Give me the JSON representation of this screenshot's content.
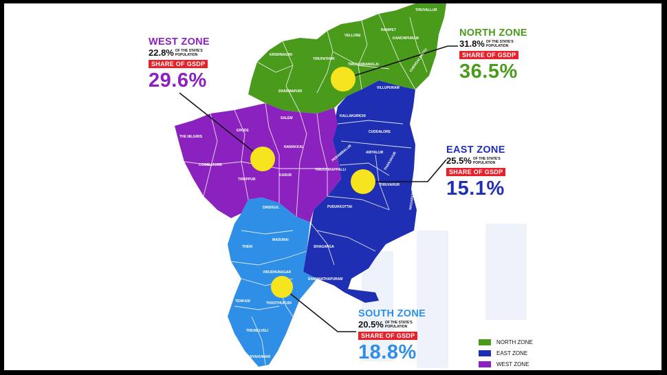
{
  "colors": {
    "north": "#4a9a1c",
    "east": "#1f2fb3",
    "west": "#8b22c0",
    "south": "#2f8fe6",
    "marker": "#f5e41e",
    "gsdp_bg": "#e8202a"
  },
  "zones": {
    "west": {
      "title": "WEST ZONE",
      "population_pct": "22.8%",
      "population_text": "OF THE STATE'S POPULATION",
      "gsdp_label": "SHARE OF GSDP",
      "gsdp_value": "29.6%"
    },
    "north": {
      "title": "NORTH ZONE",
      "population_pct": "31.8%",
      "population_text": "OF THE STATE'S POPULATION",
      "gsdp_label": "SHARE OF GSDP",
      "gsdp_value": "36.5%"
    },
    "east": {
      "title": "EAST ZONE",
      "population_pct": "25.5%",
      "population_text": "OF THE STATE'S POPULATION",
      "gsdp_label": "SHARE OF GSDP",
      "gsdp_value": "15.1%"
    },
    "south": {
      "title": "SOUTH ZONE",
      "population_pct": "20.5%",
      "population_text": "OF THE STATE'S POPULATION",
      "gsdp_label": "SHARE OF GSDP",
      "gsdp_value": "18.8%"
    }
  },
  "districts": {
    "tiruvallur": "TIRUVALLUR",
    "vellore": "VELLORE",
    "ranipet": "RANIPET",
    "kanchipuram": "KANCHIPURAM",
    "krishnagiri": "KRISHNAGIRI",
    "tirupathur": "TIRUPATHUR",
    "tiruvannamalai": "TIRUVANNAMALAI",
    "chengalpattu": "CHENGALPATTU",
    "dharmapuri": "DHARMAPURI",
    "villupuram": "VILLUPURAM",
    "salem": "SALEM",
    "erode": "ERODE",
    "the_nilgiris": "THE NILGIRIS",
    "kallakurichi": "KALLAKURICHI",
    "cuddalore": "CUDDALORE",
    "namakkal": "NAMAKKAL",
    "perambalur": "PERAMBALUR",
    "ariyalur": "ARIYALUR",
    "coimbatore": "COIMBATORE",
    "tiruchirappalli": "TIRUCHIRAPPALLI",
    "tiruppur": "TIRUPPUR",
    "karur": "KARUR",
    "thanjavur": "THANJAVUR",
    "tiruvarur": "TIRUVARUR",
    "nagapattinam": "NAGAPATTINAM",
    "pudukkottai": "PUDUKKOTTAI",
    "dindigul": "DINDIGUL",
    "madurai": "MADURAI",
    "theni": "THENI",
    "sivaganga": "SIVAGANGA",
    "virudhunagar": "VIRUDHUNAGAR",
    "ramanathapuram": "RAMANATHAPURAM",
    "tenkasi": "TENKASI",
    "thoothukudi": "THOOTHUKUDI",
    "tirunelveli": "TIRUNELVELI",
    "kanyakumari": "KANYAKUMARI"
  },
  "legend": [
    {
      "label": "NORTH ZONE",
      "color": "#4a9a1c"
    },
    {
      "label": "EAST ZONE",
      "color": "#1f2fb3"
    },
    {
      "label": "WEST ZONE",
      "color": "#8b22c0"
    }
  ]
}
